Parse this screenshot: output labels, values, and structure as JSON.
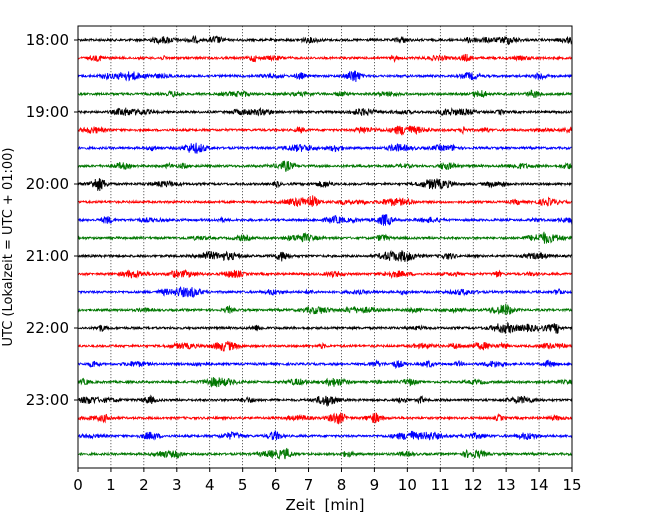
{
  "chart_data": {
    "type": "line",
    "title": "",
    "xlabel": "Zeit  [min]",
    "ylabel": "UTC (Lokalzeit = UTC + 01:00)",
    "xlim": [
      0,
      15
    ],
    "x_ticks": [
      "0",
      "1",
      "2",
      "3",
      "4",
      "5",
      "6",
      "7",
      "8",
      "9",
      "10",
      "11",
      "12",
      "13",
      "14",
      "15"
    ],
    "y_tick_labels": [
      "18:00",
      "19:00",
      "20:00",
      "21:00",
      "22:00",
      "23:00"
    ],
    "grid": "vertical dotted lines at each minute",
    "trace_colors": [
      "#000000",
      "#ff0000",
      "#0000ff",
      "#007700"
    ],
    "series": [
      {
        "start": "18:00"
      },
      {
        "start": "18:15"
      },
      {
        "start": "18:30"
      },
      {
        "start": "18:45"
      },
      {
        "start": "19:00"
      },
      {
        "start": "19:15"
      },
      {
        "start": "19:30"
      },
      {
        "start": "19:45"
      },
      {
        "start": "20:00"
      },
      {
        "start": "20:15"
      },
      {
        "start": "20:30"
      },
      {
        "start": "20:45"
      },
      {
        "start": "21:00"
      },
      {
        "start": "21:15"
      },
      {
        "start": "21:30"
      },
      {
        "start": "21:45"
      },
      {
        "start": "22:00"
      },
      {
        "start": "22:15"
      },
      {
        "start": "22:30"
      },
      {
        "start": "22:45"
      },
      {
        "start": "23:00"
      },
      {
        "start": "23:15"
      },
      {
        "start": "23:30"
      },
      {
        "start": "23:45"
      }
    ]
  }
}
